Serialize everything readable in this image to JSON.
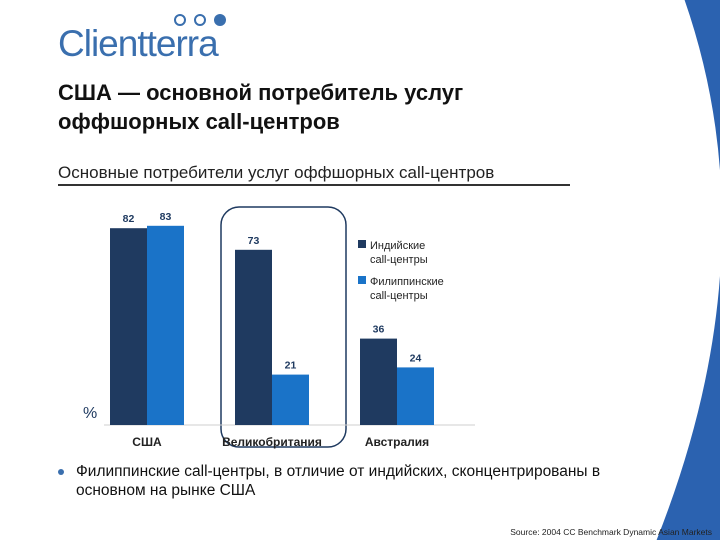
{
  "logo": {
    "name": "Clientterra"
  },
  "title": "США — основной потребитель услуг оффшорных call-центров",
  "subtitle": "Основные потребители услуг оффшорных call-центров",
  "chart_data": {
    "type": "bar",
    "categories": [
      "США",
      "Великобритания",
      "Австралия"
    ],
    "series": [
      {
        "name": "Индийские call-центры",
        "color": "#1f3a60",
        "values": [
          82,
          73,
          36
        ]
      },
      {
        "name": "Филиппинские call-центры",
        "color": "#1a73c8",
        "values": [
          83,
          21,
          24
        ]
      }
    ],
    "ylabel": "%",
    "ylim": [
      0,
      100
    ],
    "legend": "right",
    "highlight_category": "Великобритания"
  },
  "bullet": "Филиппинские call-центры, в отличие от индийских, сконцентрированы в основном на рынке США",
  "source": "Source: 2004 CC Benchmark Dynamic Asian Markets"
}
